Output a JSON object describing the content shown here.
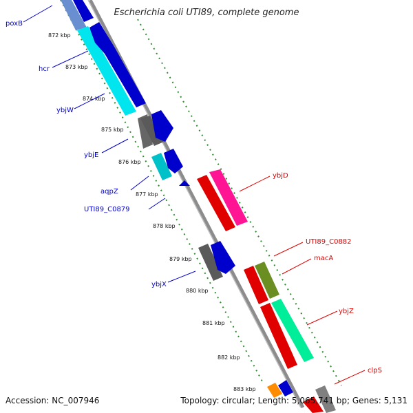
{
  "header": {
    "title": "Escherichia coli UTI89, complete genome"
  },
  "footer": {
    "accession": "Accession: NC_007946",
    "summary": "Topology: circular; Length: 5,065,741 bp; Genes: 5,131"
  },
  "ruler": {
    "ticks": [
      "872 kbp",
      "873 kbp",
      "874 kbp",
      "875 kbp",
      "876 kbp",
      "877 kbp",
      "878 kbp",
      "879 kbp",
      "880 kbp",
      "881 kbp",
      "882 kbp",
      "883 kbp"
    ]
  },
  "genes": {
    "reverse": [
      "poxB",
      "hcr",
      "ybjW",
      "ybjE",
      "aqpZ",
      "UTI89_C0879",
      "ybjX"
    ],
    "forward": [
      "ybjD",
      "UTI89_C0882",
      "macA",
      "ybjZ",
      "clpS"
    ]
  },
  "colors": {
    "backbone": "#808080",
    "reverse_strand": "#0000cc",
    "forward_strand": "#e00000",
    "gc_dots": "#2e8b2e"
  }
}
